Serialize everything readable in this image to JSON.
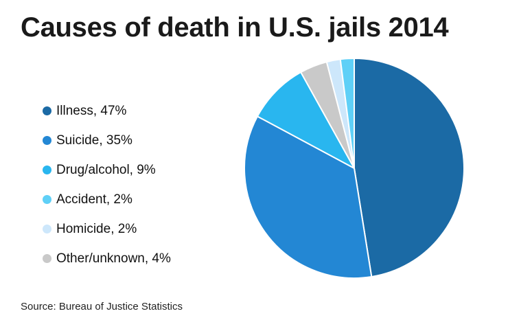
{
  "title": "Causes of death in U.S. jails 2014",
  "source": "Source: Bureau of Justice Statistics",
  "chart_data": {
    "type": "pie",
    "title": "Causes of death in U.S. jails 2014",
    "legend_position": "left",
    "slices": [
      {
        "label": "Illness, 47%",
        "name": "Illness",
        "value": 47,
        "color": "#1b6aa5"
      },
      {
        "label": "Suicide, 35%",
        "name": "Suicide",
        "value": 35,
        "color": "#2387d4"
      },
      {
        "label": "Drug/alcohol, 9%",
        "name": "Drug/alcohol",
        "value": 9,
        "color": "#29b6ef"
      },
      {
        "label": "Other/unknown, 4%",
        "name": "Other/unknown",
        "value": 4,
        "color": "#c9c9c9"
      },
      {
        "label": "Homicide, 2%",
        "name": "Homicide",
        "value": 2,
        "color": "#cde7fb"
      },
      {
        "label": "Accident, 2%",
        "name": "Accident",
        "value": 2,
        "color": "#5fd0f7"
      }
    ],
    "legend_order": [
      "Illness",
      "Suicide",
      "Drug/alcohol",
      "Accident",
      "Homicide",
      "Other/unknown"
    ]
  }
}
